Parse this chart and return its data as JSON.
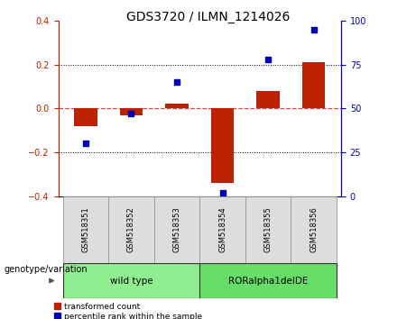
{
  "title": "GDS3720 / ILMN_1214026",
  "samples": [
    "GSM518351",
    "GSM518352",
    "GSM518353",
    "GSM518354",
    "GSM518355",
    "GSM518356"
  ],
  "red_bars": [
    -0.08,
    -0.03,
    0.02,
    -0.34,
    0.08,
    0.21
  ],
  "blue_dots_right": [
    30,
    47,
    65,
    2,
    78,
    95
  ],
  "ylim_left": [
    -0.4,
    0.4
  ],
  "ylim_right": [
    0,
    100
  ],
  "yticks_left": [
    -0.4,
    -0.2,
    0.0,
    0.2,
    0.4
  ],
  "yticks_right": [
    0,
    25,
    50,
    75,
    100
  ],
  "groups": [
    {
      "label": "wild type",
      "samples": [
        0,
        1,
        2
      ],
      "color": "#90EE90"
    },
    {
      "label": "RORalpha1delDE",
      "samples": [
        3,
        4,
        5
      ],
      "color": "#66DD66"
    }
  ],
  "group_label_prefix": "genotype/variation",
  "legend_red": "transformed count",
  "legend_blue": "percentile rank within the sample",
  "red_color": "#BB2200",
  "blue_color": "#0000BB",
  "zero_line_color": "#DD4444",
  "bar_width": 0.5,
  "dot_size": 25
}
